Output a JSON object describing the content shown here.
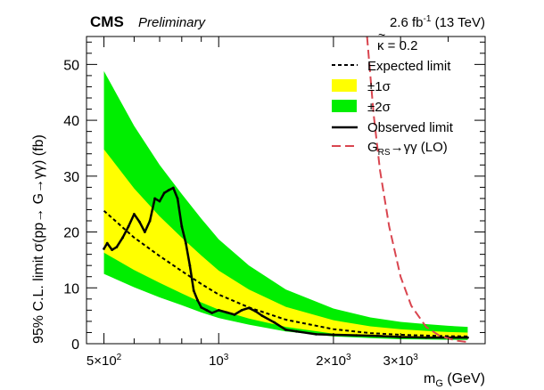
{
  "header": {
    "experiment": "CMS",
    "status": "Preliminary",
    "lumi_prefix": "2.6 fb",
    "lumi_exp": "-1",
    "lumi_suffix": " (13 TeV)"
  },
  "axes": {
    "ylabel": "95% C.L. limit σ(pp→ G→γγ) (fb)",
    "xlabel_main": "m",
    "xlabel_sub": "G",
    "xlabel_unit": " (GeV)"
  },
  "legend": {
    "header_kappa": "κ = 0.2",
    "header_kappa_tilde": "~",
    "expected": "Expected limit",
    "band1": "±1σ",
    "band2": "±2σ",
    "observed": "Observed limit",
    "signal_pre": "G",
    "signal_sub": "RS",
    "signal_post": "→γγ (LO)"
  },
  "colors": {
    "band1": "#ffff00",
    "band2": "#00ee00",
    "observed": "#000000",
    "expected": "#000000",
    "signal": "#d9454f"
  },
  "chart_data": {
    "type": "line",
    "x_scale": "log",
    "xlim": [
      450,
      5000
    ],
    "ylim": [
      0,
      55
    ],
    "x_ticks": [
      {
        "value": 500,
        "base": "5×10",
        "exp": "2"
      },
      {
        "value": 1000,
        "base": "10",
        "exp": "3"
      },
      {
        "value": 2000,
        "base": "2×10",
        "exp": "3"
      },
      {
        "value": 3000,
        "base": "3×10",
        "exp": "3"
      }
    ],
    "y_ticks": [
      0,
      10,
      20,
      30,
      40,
      50
    ],
    "expected": {
      "x": [
        500,
        600,
        700,
        800,
        900,
        1000,
        1200,
        1500,
        2000,
        2500,
        3000,
        3500,
        4000,
        4500
      ],
      "y": [
        23.8,
        19.0,
        15.7,
        13.0,
        10.7,
        8.8,
        6.5,
        4.3,
        2.6,
        1.9,
        1.6,
        1.45,
        1.35,
        1.3
      ]
    },
    "band_1sigma": {
      "x": [
        500,
        600,
        700,
        800,
        900,
        1000,
        1200,
        1500,
        2000,
        2500,
        3000,
        3500,
        4000,
        4500
      ],
      "lo": [
        16.3,
        13.2,
        10.9,
        9.0,
        7.4,
        6.1,
        4.5,
        3.0,
        1.8,
        1.3,
        1.1,
        1.0,
        0.95,
        0.9
      ],
      "hi": [
        34.8,
        27.8,
        22.8,
        19.0,
        15.8,
        13.1,
        9.7,
        6.6,
        4.2,
        3.1,
        2.6,
        2.3,
        2.1,
        2.0
      ]
    },
    "band_2sigma": {
      "x": [
        500,
        600,
        700,
        800,
        900,
        1000,
        1200,
        1500,
        2000,
        2500,
        3000,
        3500,
        4000,
        4500
      ],
      "lo": [
        12.5,
        10.1,
        8.3,
        6.9,
        5.6,
        4.6,
        3.4,
        2.2,
        1.3,
        1.0,
        0.8,
        0.75,
        0.7,
        0.65
      ],
      "hi": [
        48.8,
        39.0,
        32.0,
        26.8,
        22.4,
        18.7,
        14.0,
        9.7,
        6.3,
        4.7,
        3.9,
        3.5,
        3.2,
        3.0
      ]
    },
    "observed": {
      "x": [
        500,
        510,
        525,
        540,
        560,
        580,
        600,
        620,
        640,
        660,
        680,
        700,
        720,
        740,
        760,
        780,
        800,
        820,
        840,
        860,
        880,
        900,
        930,
        960,
        1000,
        1050,
        1100,
        1150,
        1200,
        1250,
        1300,
        1400,
        1500,
        1600,
        1800,
        2000,
        2300,
        2600,
        3000,
        3500,
        4000,
        4500
      ],
      "y": [
        17.0,
        18.0,
        16.8,
        17.3,
        19.0,
        21.0,
        23.2,
        21.8,
        20.0,
        22.0,
        26.0,
        25.5,
        27.0,
        27.5,
        27.9,
        26.0,
        21.0,
        18.0,
        14.0,
        9.5,
        7.8,
        6.5,
        6.0,
        5.5,
        6.0,
        5.6,
        5.2,
        6.0,
        6.4,
        5.8,
        5.0,
        3.8,
        2.5,
        2.2,
        1.7,
        1.6,
        1.5,
        1.4,
        1.2,
        1.1,
        1.1,
        1.1
      ]
    },
    "signal": {
      "x": [
        2450,
        2550,
        2650,
        2800,
        3000,
        3200,
        3500,
        3800,
        4200,
        4500
      ],
      "y": [
        55,
        41,
        31,
        21,
        12,
        6.8,
        3.0,
        1.4,
        0.55,
        0.3
      ]
    }
  }
}
